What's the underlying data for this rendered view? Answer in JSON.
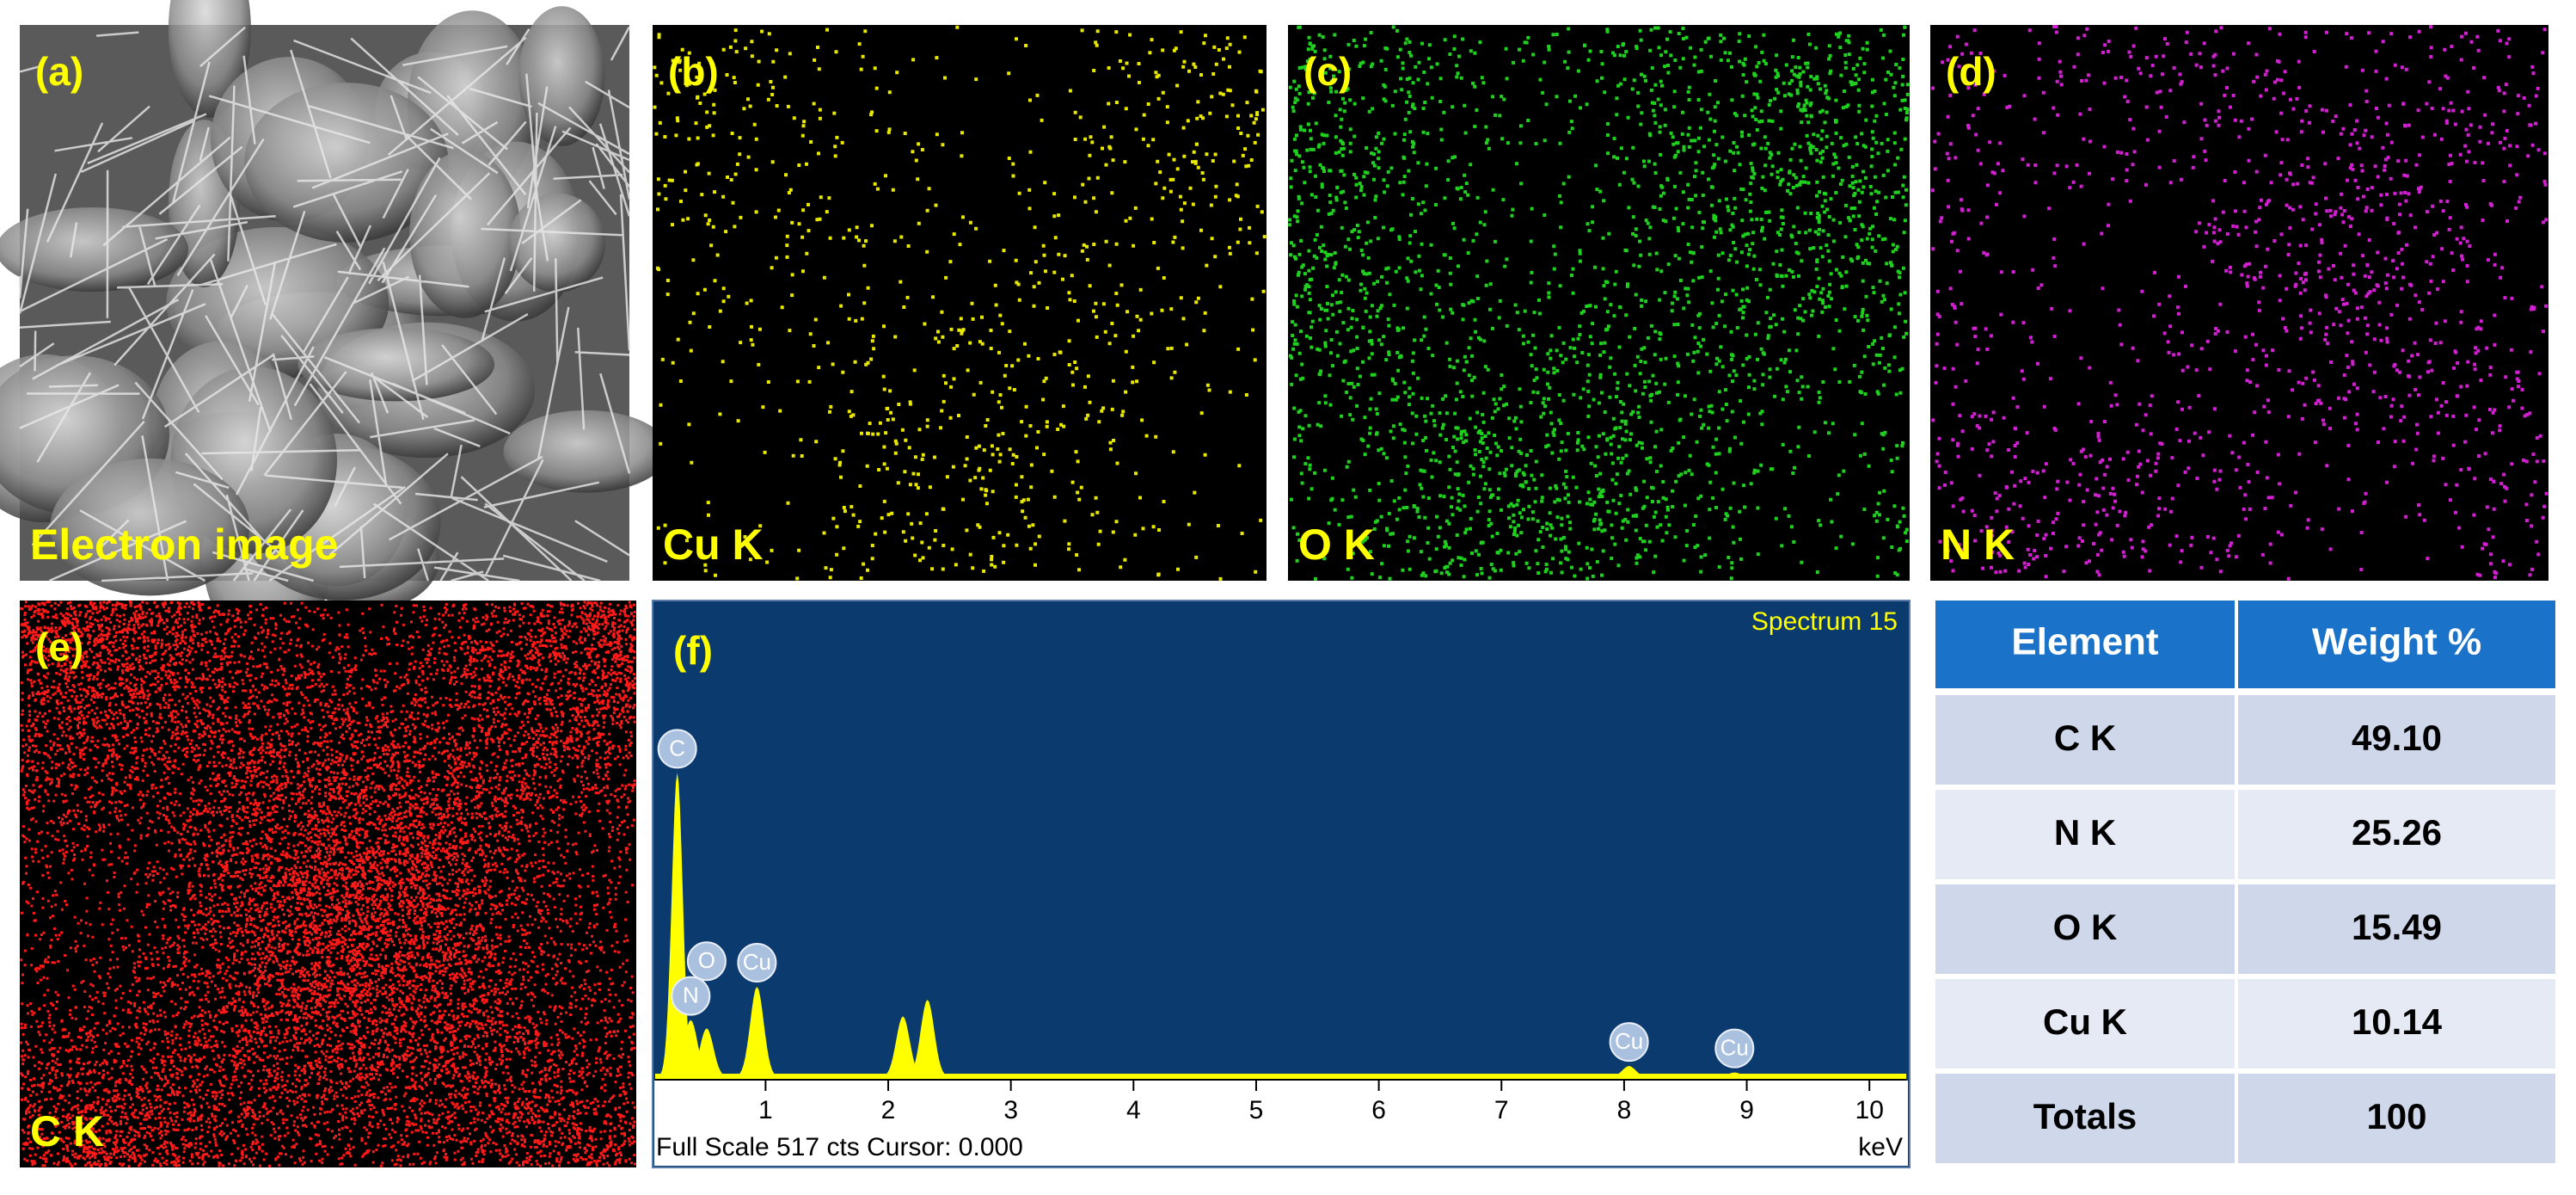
{
  "panels": [
    {
      "letter": "(a)",
      "label": "Electron image"
    },
    {
      "letter": "(b)",
      "label": "Cu K",
      "color": "#e8e800"
    },
    {
      "letter": "(c)",
      "label": "O K",
      "color": "#1fd01f"
    },
    {
      "letter": "(d)",
      "label": "N K",
      "color": "#d21fd2"
    },
    {
      "letter": "(e)",
      "label": "C K",
      "color": "#ff1a1a"
    }
  ],
  "spectrum": {
    "letter": "(f)",
    "title": "Spectrum 15",
    "footer": "Full Scale 517 cts Cursor: 0.000",
    "unit": "keV",
    "xlim": [
      0.1,
      10.3
    ],
    "xticks": [
      1,
      2,
      3,
      4,
      5,
      6,
      7,
      8,
      9,
      10
    ],
    "ylim": [
      0,
      517
    ],
    "peaks": [
      {
        "label": "C",
        "x": 0.28,
        "counts": 330
      },
      {
        "label": "N",
        "x": 0.39,
        "counts": 62
      },
      {
        "label": "O",
        "x": 0.52,
        "counts": 53
      },
      {
        "label": "Cu",
        "x": 0.93,
        "counts": 98
      },
      {
        "label": null,
        "x": 2.12,
        "counts": 66
      },
      {
        "label": null,
        "x": 2.32,
        "counts": 84
      },
      {
        "label": "Cu",
        "x": 8.04,
        "counts": 12
      },
      {
        "label": "Cu",
        "x": 8.9,
        "counts": 5
      }
    ]
  },
  "table": {
    "header": [
      "Element",
      "Weight %"
    ],
    "rows": [
      [
        "C K",
        "49.10"
      ],
      [
        "N K",
        "25.26"
      ],
      [
        "O K",
        "15.49"
      ],
      [
        "Cu K",
        "10.14"
      ],
      [
        "Totals",
        "100"
      ]
    ]
  }
}
